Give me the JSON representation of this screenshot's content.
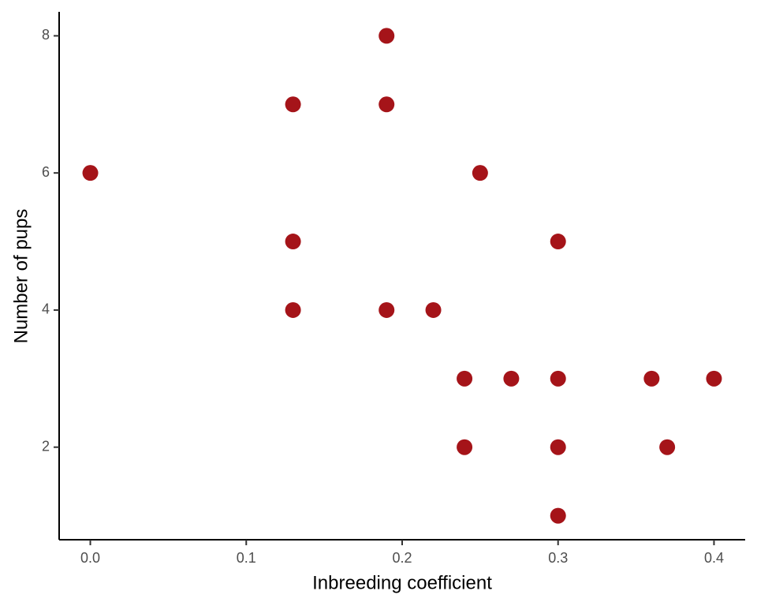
{
  "chart_data": {
    "type": "scatter",
    "x_label": "Inbreeding coefficient",
    "y_label": "Number of pups",
    "x": [
      0,
      0.13,
      0.19,
      0.19,
      0.25,
      0.13,
      0.3,
      0.13,
      0.19,
      0.22,
      0.24,
      0.27,
      0.3,
      0.36,
      0.4,
      0.24,
      0.3,
      0.37,
      0.3
    ],
    "values": [
      6,
      7,
      8,
      7,
      6,
      5,
      5,
      4,
      4,
      4,
      3,
      3,
      3,
      3,
      3,
      2,
      2,
      2,
      1
    ],
    "color": "#a51419",
    "xlim": [
      -0.02,
      0.42
    ],
    "ylim": [
      0.65,
      8.35
    ],
    "xticks": [
      {
        "value": 0,
        "label": "0.0"
      },
      0.1,
      0.2,
      0.3,
      0.4
    ],
    "yticks": [
      2,
      4,
      6,
      8
    ],
    "grid": false
  }
}
